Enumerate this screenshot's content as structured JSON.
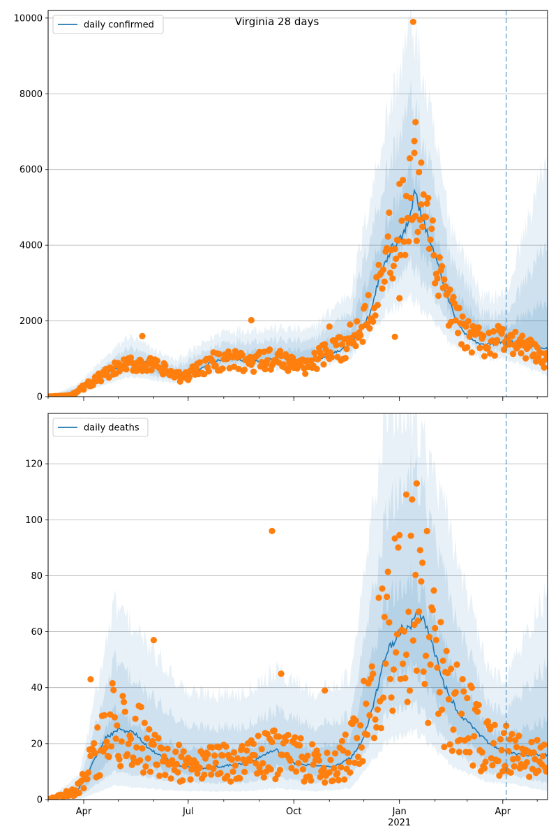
{
  "figure": {
    "title": "Virginia 28 days",
    "colors": {
      "line": "#1f77b4",
      "points": "#ff7f0e",
      "band": "#1f77b4",
      "grid": "#b0b0b0",
      "vline": "#1f77b4"
    }
  },
  "chart_data": [
    {
      "type": "line",
      "title": "Virginia 28 days",
      "legend": {
        "label": "daily confirmed",
        "placement": "top-left"
      },
      "xlim": [
        "2020-03-01",
        "2021-05-10"
      ],
      "ylim": [
        0,
        10200
      ],
      "yticks": [
        0,
        2000,
        4000,
        6000,
        8000,
        10000
      ],
      "xtick_labels": [
        "Apr",
        "Jul",
        "Oct",
        "Jan",
        "Apr"
      ],
      "xtick_year_label": "2021",
      "xtick_dates": [
        "2020-04-01",
        "2020-07-01",
        "2020-10-01",
        "2021-01-01",
        "2021-04-01"
      ],
      "grid": "horizontal",
      "forecast_start": "2021-04-04",
      "line_keypoints": [
        [
          "2020-03-01",
          0
        ],
        [
          "2020-03-15",
          20
        ],
        [
          "2020-03-25",
          120
        ],
        [
          "2020-04-05",
          350
        ],
        [
          "2020-04-20",
          600
        ],
        [
          "2020-05-05",
          820
        ],
        [
          "2020-05-20",
          950
        ],
        [
          "2020-06-05",
          800
        ],
        [
          "2020-06-20",
          520
        ],
        [
          "2020-07-05",
          600
        ],
        [
          "2020-07-20",
          900
        ],
        [
          "2020-08-05",
          1020
        ],
        [
          "2020-08-20",
          920
        ],
        [
          "2020-09-05",
          960
        ],
        [
          "2020-09-20",
          1050
        ],
        [
          "2020-10-05",
          900
        ],
        [
          "2020-10-20",
          980
        ],
        [
          "2020-11-01",
          1100
        ],
        [
          "2020-11-15",
          1300
        ],
        [
          "2020-11-25",
          1600
        ],
        [
          "2020-12-05",
          2100
        ],
        [
          "2020-12-15",
          3200
        ],
        [
          "2020-12-25",
          3900
        ],
        [
          "2021-01-05",
          4300
        ],
        [
          "2021-01-15",
          5400
        ],
        [
          "2021-01-20",
          4800
        ],
        [
          "2021-01-30",
          3900
        ],
        [
          "2021-02-10",
          2800
        ],
        [
          "2021-02-20",
          2000
        ],
        [
          "2021-03-01",
          1600
        ],
        [
          "2021-03-10",
          1400
        ],
        [
          "2021-03-25",
          1400
        ],
        [
          "2021-04-04",
          1500
        ],
        [
          "2021-04-20",
          1350
        ],
        [
          "2021-05-10",
          1250
        ]
      ],
      "band_keypoints": [
        [
          "2020-03-01",
          [
            0,
            0,
            0,
            0,
            0,
            0
          ]
        ],
        [
          "2020-03-25",
          [
            40,
            70,
            100,
            150,
            220,
            300
          ]
        ],
        [
          "2020-05-10",
          [
            520,
            680,
            820,
            1050,
            1300,
            1600
          ]
        ],
        [
          "2020-06-20",
          [
            350,
            430,
            500,
            640,
            780,
            950
          ]
        ],
        [
          "2020-08-01",
          [
            700,
            820,
            950,
            1200,
            1450,
            1750
          ]
        ],
        [
          "2020-09-15",
          [
            720,
            850,
            980,
            1250,
            1500,
            1800
          ]
        ],
        [
          "2020-10-15",
          [
            700,
            830,
            950,
            1200,
            1450,
            1750
          ]
        ],
        [
          "2020-11-20",
          [
            1050,
            1250,
            1450,
            1850,
            2300,
            2800
          ]
        ],
        [
          "2020-12-20",
          [
            2200,
            2800,
            3400,
            4500,
            5800,
            7200
          ]
        ],
        [
          "2021-01-12",
          [
            2600,
            3500,
            4400,
            6000,
            7900,
            9900
          ]
        ],
        [
          "2021-02-15",
          [
            1400,
            1800,
            2200,
            2900,
            3700,
            4500
          ]
        ],
        [
          "2021-03-15",
          [
            1000,
            1200,
            1400,
            1800,
            2150,
            2600
          ]
        ],
        [
          "2021-04-04",
          [
            1000,
            1200,
            1400,
            1850,
            2200,
            2700
          ]
        ],
        [
          "2021-05-10",
          [
            550,
            800,
            1200,
            2500,
            4100,
            6400
          ]
        ]
      ],
      "observed_keypoints": [
        [
          "2020-03-01",
          0
        ],
        [
          "2020-03-20",
          30
        ],
        [
          "2020-04-01",
          250
        ],
        [
          "2020-04-15",
          500
        ],
        [
          "2020-05-01",
          750
        ],
        [
          "2020-05-20",
          900
        ],
        [
          "2020-06-10",
          700
        ],
        [
          "2020-06-25",
          480
        ],
        [
          "2020-07-10",
          750
        ],
        [
          "2020-07-25",
          950
        ],
        [
          "2020-08-10",
          950
        ],
        [
          "2020-08-25",
          880
        ],
        [
          "2020-09-10",
          980
        ],
        [
          "2020-09-25",
          950
        ],
        [
          "2020-10-10",
          800
        ],
        [
          "2020-10-25",
          1050
        ],
        [
          "2020-11-10",
          1250
        ],
        [
          "2020-11-25",
          1700
        ],
        [
          "2020-12-05",
          2300
        ],
        [
          "2020-12-15",
          3400
        ],
        [
          "2020-12-25",
          3900
        ],
        [
          "2021-01-05",
          4700
        ],
        [
          "2021-01-12",
          5200
        ],
        [
          "2021-01-20",
          4700
        ],
        [
          "2021-01-28",
          4000
        ],
        [
          "2021-02-08",
          2800
        ],
        [
          "2021-02-20",
          1900
        ],
        [
          "2021-03-05",
          1500
        ],
        [
          "2021-03-20",
          1400
        ],
        [
          "2021-04-04",
          1550
        ],
        [
          "2021-04-15",
          1300
        ],
        [
          "2021-05-10",
          1000
        ]
      ],
      "observed_outliers": [
        [
          "2021-01-13",
          9900
        ],
        [
          "2021-01-15",
          7250
        ],
        [
          "2021-01-14",
          6750
        ],
        [
          "2021-01-20",
          6180
        ],
        [
          "2020-08-25",
          2020
        ],
        [
          "2020-11-01",
          1850
        ],
        [
          "2020-12-28",
          1580
        ],
        [
          "2021-01-01",
          2600
        ],
        [
          "2020-05-22",
          1600
        ]
      ]
    },
    {
      "type": "line",
      "legend": {
        "label": "daily deaths",
        "placement": "top-left"
      },
      "xlim": [
        "2020-03-01",
        "2021-05-10"
      ],
      "ylim": [
        0,
        138
      ],
      "yticks": [
        0,
        20,
        40,
        60,
        80,
        100,
        120
      ],
      "xtick_labels": [
        "Apr",
        "Jul",
        "Oct",
        "Jan",
        "Apr"
      ],
      "xtick_year_label": "2021",
      "xtick_dates": [
        "2020-04-01",
        "2020-07-01",
        "2020-10-01",
        "2021-01-01",
        "2021-04-01"
      ],
      "grid": "horizontal",
      "forecast_start": "2021-04-04",
      "line_keypoints": [
        [
          "2020-03-01",
          0
        ],
        [
          "2020-03-25",
          2
        ],
        [
          "2020-04-05",
          10
        ],
        [
          "2020-04-20",
          22
        ],
        [
          "2020-05-01",
          25
        ],
        [
          "2020-05-15",
          24
        ],
        [
          "2020-05-28",
          18
        ],
        [
          "2020-06-10",
          15
        ],
        [
          "2020-06-25",
          12
        ],
        [
          "2020-07-10",
          11
        ],
        [
          "2020-08-01",
          12
        ],
        [
          "2020-08-20",
          13
        ],
        [
          "2020-09-01",
          15
        ],
        [
          "2020-09-15",
          18
        ],
        [
          "2020-10-01",
          13
        ],
        [
          "2020-10-20",
          12
        ],
        [
          "2020-11-05",
          12
        ],
        [
          "2020-11-20",
          15
        ],
        [
          "2020-12-01",
          22
        ],
        [
          "2020-12-10",
          35
        ],
        [
          "2020-12-20",
          52
        ],
        [
          "2021-01-01",
          60
        ],
        [
          "2021-01-10",
          62
        ],
        [
          "2021-01-18",
          68
        ],
        [
          "2021-01-30",
          55
        ],
        [
          "2021-02-10",
          40
        ],
        [
          "2021-02-20",
          32
        ],
        [
          "2021-03-05",
          26
        ],
        [
          "2021-03-20",
          20
        ],
        [
          "2021-04-04",
          17
        ],
        [
          "2021-04-20",
          16
        ],
        [
          "2021-05-10",
          16
        ]
      ],
      "band_keypoints": [
        [
          "2020-03-01",
          [
            0,
            0,
            0,
            0,
            0,
            0
          ]
        ],
        [
          "2020-03-28",
          [
            0,
            1,
            2,
            4,
            6,
            9
          ]
        ],
        [
          "2020-04-28",
          [
            5,
            10,
            16,
            32,
            50,
            70
          ]
        ],
        [
          "2020-05-25",
          [
            4,
            8,
            12,
            24,
            38,
            56
          ]
        ],
        [
          "2020-07-01",
          [
            3,
            6,
            9,
            18,
            26,
            38
          ]
        ],
        [
          "2020-08-15",
          [
            3,
            6,
            9,
            18,
            26,
            38
          ]
        ],
        [
          "2020-09-15",
          [
            4,
            8,
            12,
            22,
            32,
            46
          ]
        ],
        [
          "2020-10-20",
          [
            3,
            6,
            9,
            18,
            26,
            38
          ]
        ],
        [
          "2020-11-20",
          [
            4,
            8,
            12,
            22,
            30,
            44
          ]
        ],
        [
          "2020-12-20",
          [
            20,
            30,
            42,
            70,
            100,
            138
          ]
        ],
        [
          "2021-01-15",
          [
            25,
            35,
            48,
            80,
            120,
            138
          ]
        ],
        [
          "2021-02-15",
          [
            12,
            18,
            26,
            48,
            70,
            95
          ]
        ],
        [
          "2021-03-20",
          [
            6,
            9,
            13,
            24,
            33,
            45
          ]
        ],
        [
          "2021-04-04",
          [
            6,
            9,
            12,
            23,
            32,
            44
          ]
        ],
        [
          "2021-05-10",
          [
            3,
            6,
            10,
            28,
            48,
            74
          ]
        ]
      ],
      "observed_keypoints": [
        [
          "2020-03-01",
          0
        ],
        [
          "2020-03-25",
          3
        ],
        [
          "2020-04-10",
          15
        ],
        [
          "2020-04-25",
          27
        ],
        [
          "2020-05-10",
          26
        ],
        [
          "2020-05-25",
          20
        ],
        [
          "2020-06-10",
          14
        ],
        [
          "2020-06-25",
          13
        ],
        [
          "2020-07-15",
          12
        ],
        [
          "2020-08-05",
          13
        ],
        [
          "2020-08-25",
          14
        ],
        [
          "2020-09-10",
          16
        ],
        [
          "2020-09-25",
          16
        ],
        [
          "2020-10-15",
          13
        ],
        [
          "2020-11-05",
          12
        ],
        [
          "2020-11-20",
          18
        ],
        [
          "2020-12-05",
          32
        ],
        [
          "2020-12-15",
          52
        ],
        [
          "2020-12-25",
          62
        ],
        [
          "2021-01-05",
          68
        ],
        [
          "2021-01-15",
          75
        ],
        [
          "2021-01-25",
          62
        ],
        [
          "2021-02-05",
          45
        ],
        [
          "2021-02-18",
          32
        ],
        [
          "2021-03-05",
          26
        ],
        [
          "2021-03-20",
          19
        ],
        [
          "2021-04-04",
          18
        ],
        [
          "2021-04-20",
          15
        ],
        [
          "2021-05-10",
          14
        ]
      ],
      "observed_outliers": [
        [
          "2020-09-12",
          96
        ],
        [
          "2021-01-16",
          113
        ],
        [
          "2021-01-07",
          109
        ],
        [
          "2020-06-01",
          57
        ],
        [
          "2020-04-07",
          43
        ],
        [
          "2020-09-20",
          45
        ],
        [
          "2020-10-28",
          39
        ]
      ]
    }
  ]
}
